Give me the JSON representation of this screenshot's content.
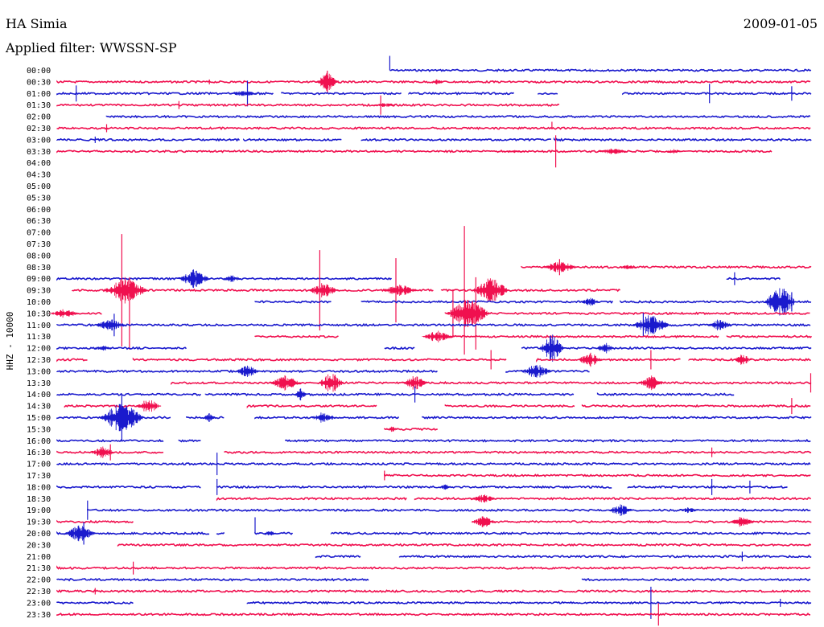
{
  "header": {
    "station": "HA Simia",
    "date": "2009-01-05",
    "filter": "Applied filter: WWSSN-SP"
  },
  "chart_data": {
    "type": "line",
    "ylabel": "HHZ - 10000",
    "colors": {
      "odd_row": "#1a1acd",
      "even_row": "#f0104f"
    },
    "rows": [
      {
        "label": "00:00",
        "color": "blue",
        "segments": [
          [
            0.437,
            0.991
          ]
        ],
        "spikes": [
          [
            0.437,
            18,
            0
          ],
          [
            0.7,
            2,
            0
          ]
        ],
        "bursts": []
      },
      {
        "label": "00:30",
        "color": "red",
        "segments": [
          [
            0.0,
            0.991
          ]
        ],
        "spikes": [
          [
            0.355,
            14,
            14
          ],
          [
            0.2,
            3,
            3
          ]
        ],
        "bursts": [
          [
            0.355,
            8,
            12
          ],
          [
            0.5,
            4,
            4
          ]
        ]
      },
      {
        "label": "01:00",
        "color": "blue",
        "segments": [
          [
            0.0,
            0.285
          ],
          [
            0.295,
            0.452
          ],
          [
            0.462,
            0.6
          ],
          [
            0.632,
            0.658
          ],
          [
            0.743,
            0.991
          ]
        ],
        "spikes": [
          [
            0.025,
            10,
            10
          ],
          [
            0.25,
            16,
            16
          ],
          [
            0.857,
            12,
            12
          ],
          [
            0.965,
            9,
            9
          ]
        ],
        "bursts": [
          [
            0.245,
            10,
            4
          ]
        ]
      },
      {
        "label": "01:30",
        "color": "red",
        "segments": [
          [
            0.0,
            0.66
          ]
        ],
        "spikes": [
          [
            0.16,
            5,
            5
          ],
          [
            0.425,
            12,
            12
          ]
        ],
        "bursts": [
          [
            0.43,
            8,
            3
          ]
        ]
      },
      {
        "label": "02:00",
        "color": "blue",
        "segments": [
          [
            0.065,
            0.991
          ]
        ],
        "spikes": [],
        "bursts": []
      },
      {
        "label": "02:30",
        "color": "red",
        "segments": [
          [
            0.0,
            0.991
          ]
        ],
        "spikes": [
          [
            0.065,
            5,
            5
          ],
          [
            0.65,
            8,
            0
          ]
        ],
        "bursts": []
      },
      {
        "label": "03:00",
        "color": "blue",
        "segments": [
          [
            0.0,
            0.24
          ],
          [
            0.245,
            0.375
          ],
          [
            0.4,
            0.65
          ],
          [
            0.653,
            0.991
          ]
        ],
        "spikes": [
          [
            0.05,
            4,
            4
          ]
        ],
        "bursts": []
      },
      {
        "label": "03:30",
        "color": "red",
        "segments": [
          [
            0.0,
            0.94
          ]
        ],
        "spikes": [
          [
            0.655,
            20,
            20
          ]
        ],
        "bursts": [
          [
            0.6,
            8,
            2
          ],
          [
            0.73,
            10,
            4
          ],
          [
            0.81,
            6,
            3
          ]
        ]
      },
      {
        "label": "04:00",
        "color": "blue",
        "segments": [],
        "spikes": [],
        "bursts": []
      },
      {
        "label": "04:30",
        "color": "red",
        "segments": [],
        "spikes": [],
        "bursts": []
      },
      {
        "label": "05:00",
        "color": "blue",
        "segments": [],
        "spikes": [],
        "bursts": []
      },
      {
        "label": "05:30",
        "color": "red",
        "segments": [],
        "spikes": [],
        "bursts": []
      },
      {
        "label": "06:00",
        "color": "blue",
        "segments": [],
        "spikes": [],
        "bursts": []
      },
      {
        "label": "06:30",
        "color": "red",
        "segments": [],
        "spikes": [],
        "bursts": []
      },
      {
        "label": "07:00",
        "color": "blue",
        "segments": [],
        "spikes": [],
        "bursts": []
      },
      {
        "label": "07:30",
        "color": "red",
        "segments": [],
        "spikes": [],
        "bursts": []
      },
      {
        "label": "08:00",
        "color": "blue",
        "segments": [],
        "spikes": [],
        "bursts": []
      },
      {
        "label": "08:30",
        "color": "red",
        "segments": [
          [
            0.61,
            0.991
          ]
        ],
        "spikes": [
          [
            0.66,
            10,
            10
          ]
        ],
        "bursts": [
          [
            0.66,
            12,
            8
          ],
          [
            0.75,
            6,
            3
          ]
        ]
      },
      {
        "label": "09:00",
        "color": "blue",
        "segments": [
          [
            0.0,
            0.44
          ],
          [
            0.88,
            0.95
          ]
        ],
        "spikes": [
          [
            0.89,
            8,
            8
          ]
        ],
        "bursts": [
          [
            0.18,
            10,
            12
          ],
          [
            0.23,
            6,
            5
          ]
        ]
      },
      {
        "label": "09:30",
        "color": "red",
        "segments": [
          [
            0.02,
            0.495
          ],
          [
            0.505,
            0.74
          ]
        ],
        "spikes": [
          [
            0.085,
            70,
            70
          ],
          [
            0.345,
            50,
            50
          ],
          [
            0.445,
            40,
            40
          ],
          [
            0.535,
            80,
            80
          ]
        ],
        "bursts": [
          [
            0.09,
            14,
            18
          ],
          [
            0.35,
            10,
            10
          ],
          [
            0.45,
            12,
            8
          ],
          [
            0.57,
            12,
            18
          ]
        ]
      },
      {
        "label": "10:00",
        "color": "blue",
        "segments": [
          [
            0.26,
            0.36
          ],
          [
            0.4,
            0.73
          ],
          [
            0.74,
            0.991
          ]
        ],
        "spikes": [
          [
            0.965,
            12,
            12
          ]
        ],
        "bursts": [
          [
            0.95,
            10,
            22
          ],
          [
            0.7,
            6,
            6
          ]
        ]
      },
      {
        "label": "10:30",
        "color": "red",
        "segments": [
          [
            0.0,
            0.06
          ],
          [
            0.51,
            0.99
          ]
        ],
        "spikes": [
          [
            0.095,
            45,
            45
          ],
          [
            0.52,
            30,
            30
          ],
          [
            0.55,
            45,
            45
          ]
        ],
        "bursts": [
          [
            0.01,
            10,
            6
          ],
          [
            0.54,
            14,
            20
          ]
        ]
      },
      {
        "label": "11:00",
        "color": "blue",
        "segments": [
          [
            0.0,
            0.991
          ]
        ],
        "spikes": [
          [
            0.075,
            14,
            14
          ],
          [
            0.77,
            15,
            15
          ]
        ],
        "bursts": [
          [
            0.07,
            10,
            8
          ],
          [
            0.78,
            12,
            14
          ],
          [
            0.87,
            8,
            8
          ]
        ]
      },
      {
        "label": "11:30",
        "color": "red",
        "segments": [
          [
            0.26,
            0.37
          ],
          [
            0.49,
            0.87
          ],
          [
            0.88,
            0.991
          ]
        ],
        "spikes": [],
        "bursts": [
          [
            0.5,
            10,
            8
          ]
        ]
      },
      {
        "label": "12:00",
        "color": "blue",
        "segments": [
          [
            0.0,
            0.17
          ],
          [
            0.43,
            0.47
          ],
          [
            0.61,
            0.991
          ]
        ],
        "spikes": [],
        "bursts": [
          [
            0.06,
            6,
            4
          ],
          [
            0.65,
            8,
            18
          ],
          [
            0.72,
            6,
            8
          ]
        ]
      },
      {
        "label": "12:30",
        "color": "red",
        "segments": [
          [
            0.0,
            0.04
          ],
          [
            0.1,
            0.59
          ],
          [
            0.63,
            0.82
          ],
          [
            0.83,
            0.991
          ]
        ],
        "spikes": [
          [
            0.57,
            12,
            12
          ],
          [
            0.78,
            12,
            12
          ]
        ],
        "bursts": [
          [
            0.7,
            8,
            10
          ],
          [
            0.9,
            6,
            8
          ]
        ]
      },
      {
        "label": "13:00",
        "color": "blue",
        "segments": [
          [
            0.0,
            0.5
          ],
          [
            0.59,
            0.7
          ]
        ],
        "spikes": [],
        "bursts": [
          [
            0.25,
            8,
            8
          ],
          [
            0.63,
            10,
            10
          ]
        ]
      },
      {
        "label": "13:30",
        "color": "red",
        "segments": [
          [
            0.15,
            0.991
          ]
        ],
        "spikes": [
          [
            0.365,
            10,
            10
          ],
          [
            0.99,
            12,
            12
          ]
        ],
        "bursts": [
          [
            0.3,
            10,
            10
          ],
          [
            0.36,
            8,
            14
          ],
          [
            0.47,
            8,
            10
          ],
          [
            0.78,
            8,
            10
          ]
        ]
      },
      {
        "label": "14:00",
        "color": "blue",
        "segments": [
          [
            0.0,
            0.19
          ],
          [
            0.195,
            0.68
          ],
          [
            0.71,
            0.89
          ]
        ],
        "spikes": [
          [
            0.47,
            10,
            10
          ]
        ],
        "bursts": [
          [
            0.32,
            4,
            8
          ]
        ]
      },
      {
        "label": "14:30",
        "color": "red",
        "segments": [
          [
            0.01,
            0.12
          ],
          [
            0.25,
            0.42
          ],
          [
            0.51,
            0.68
          ],
          [
            0.69,
            0.991
          ]
        ],
        "spikes": [
          [
            0.965,
            10,
            10
          ]
        ],
        "bursts": [
          [
            0.12,
            8,
            10
          ]
        ]
      },
      {
        "label": "15:00",
        "color": "blue",
        "segments": [
          [
            0.0,
            0.15
          ],
          [
            0.17,
            0.22
          ],
          [
            0.26,
            0.45
          ],
          [
            0.48,
            0.991
          ]
        ],
        "spikes": [
          [
            0.085,
            30,
            30
          ]
        ],
        "bursts": [
          [
            0.085,
            14,
            22
          ],
          [
            0.35,
            8,
            8
          ],
          [
            0.2,
            4,
            6
          ]
        ]
      },
      {
        "label": "15:30",
        "color": "red",
        "segments": [
          [
            0.43,
            0.5
          ]
        ],
        "spikes": [],
        "bursts": [
          [
            0.44,
            4,
            4
          ]
        ]
      },
      {
        "label": "16:00",
        "color": "blue",
        "segments": [
          [
            0.0,
            0.14
          ],
          [
            0.16,
            0.19
          ],
          [
            0.3,
            0.991
          ]
        ],
        "spikes": [],
        "bursts": []
      },
      {
        "label": "16:30",
        "color": "red",
        "segments": [
          [
            0.0,
            0.14
          ],
          [
            0.22,
            0.991
          ]
        ],
        "spikes": [
          [
            0.07,
            10,
            10
          ],
          [
            0.86,
            6,
            6
          ]
        ],
        "bursts": [
          [
            0.06,
            8,
            8
          ]
        ]
      },
      {
        "label": "17:00",
        "color": "blue",
        "segments": [
          [
            0.0,
            0.991
          ]
        ],
        "spikes": [
          [
            0.21,
            14,
            14
          ]
        ],
        "bursts": []
      },
      {
        "label": "17:30",
        "color": "red",
        "segments": [
          [
            0.43,
            0.991
          ]
        ],
        "spikes": [
          [
            0.43,
            6,
            6
          ]
        ],
        "bursts": []
      },
      {
        "label": "18:00",
        "color": "blue",
        "segments": [
          [
            0.0,
            0.19
          ],
          [
            0.21,
            0.73
          ],
          [
            0.75,
            0.96
          ]
        ],
        "spikes": [
          [
            0.21,
            10,
            10
          ],
          [
            0.86,
            10,
            10
          ],
          [
            0.91,
            8,
            8
          ]
        ],
        "bursts": [
          [
            0.51,
            4,
            4
          ]
        ]
      },
      {
        "label": "18:30",
        "color": "red",
        "segments": [
          [
            0.21,
            0.46
          ],
          [
            0.47,
            0.991
          ]
        ],
        "spikes": [],
        "bursts": [
          [
            0.56,
            8,
            6
          ]
        ]
      },
      {
        "label": "19:00",
        "color": "blue",
        "segments": [
          [
            0.04,
            0.991
          ]
        ],
        "spikes": [
          [
            0.04,
            12,
            12
          ]
        ],
        "bursts": [
          [
            0.74,
            8,
            8
          ],
          [
            0.83,
            6,
            4
          ]
        ]
      },
      {
        "label": "19:30",
        "color": "red",
        "segments": [
          [
            0.0,
            0.1
          ],
          [
            0.55,
            0.991
          ]
        ],
        "spikes": [],
        "bursts": [
          [
            0.56,
            8,
            8
          ],
          [
            0.9,
            8,
            8
          ]
        ]
      },
      {
        "label": "20:00",
        "color": "blue",
        "segments": [
          [
            0.0,
            0.2
          ],
          [
            0.21,
            0.22
          ],
          [
            0.26,
            0.31
          ],
          [
            0.36,
            0.991
          ]
        ],
        "spikes": [
          [
            0.035,
            14,
            14
          ],
          [
            0.26,
            20,
            0
          ]
        ],
        "bursts": [
          [
            0.03,
            10,
            12
          ],
          [
            0.28,
            4,
            4
          ]
        ]
      },
      {
        "label": "20:30",
        "color": "red",
        "segments": [
          [
            0.08,
            0.991
          ]
        ],
        "spikes": [],
        "bursts": []
      },
      {
        "label": "21:00",
        "color": "blue",
        "segments": [
          [
            0.34,
            0.4
          ],
          [
            0.45,
            0.991
          ]
        ],
        "spikes": [
          [
            0.9,
            6,
            6
          ]
        ],
        "bursts": []
      },
      {
        "label": "21:30",
        "color": "red",
        "segments": [
          [
            0.0,
            0.991
          ]
        ],
        "spikes": [
          [
            0.1,
            8,
            8
          ]
        ],
        "bursts": []
      },
      {
        "label": "22:00",
        "color": "blue",
        "segments": [
          [
            0.0,
            0.41
          ],
          [
            0.69,
            0.991
          ]
        ],
        "spikes": [],
        "bursts": []
      },
      {
        "label": "22:30",
        "color": "red",
        "segments": [
          [
            0.0,
            0.991
          ]
        ],
        "spikes": [
          [
            0.05,
            4,
            4
          ]
        ],
        "bursts": []
      },
      {
        "label": "23:00",
        "color": "blue",
        "segments": [
          [
            0.0,
            0.1
          ],
          [
            0.25,
            0.991
          ]
        ],
        "spikes": [
          [
            0.78,
            20,
            20
          ],
          [
            0.95,
            5,
            5
          ]
        ],
        "bursts": []
      },
      {
        "label": "23:30",
        "color": "red",
        "segments": [
          [
            0.0,
            0.991
          ]
        ],
        "spikes": [
          [
            0.79,
            14,
            14
          ]
        ],
        "bursts": []
      }
    ]
  }
}
